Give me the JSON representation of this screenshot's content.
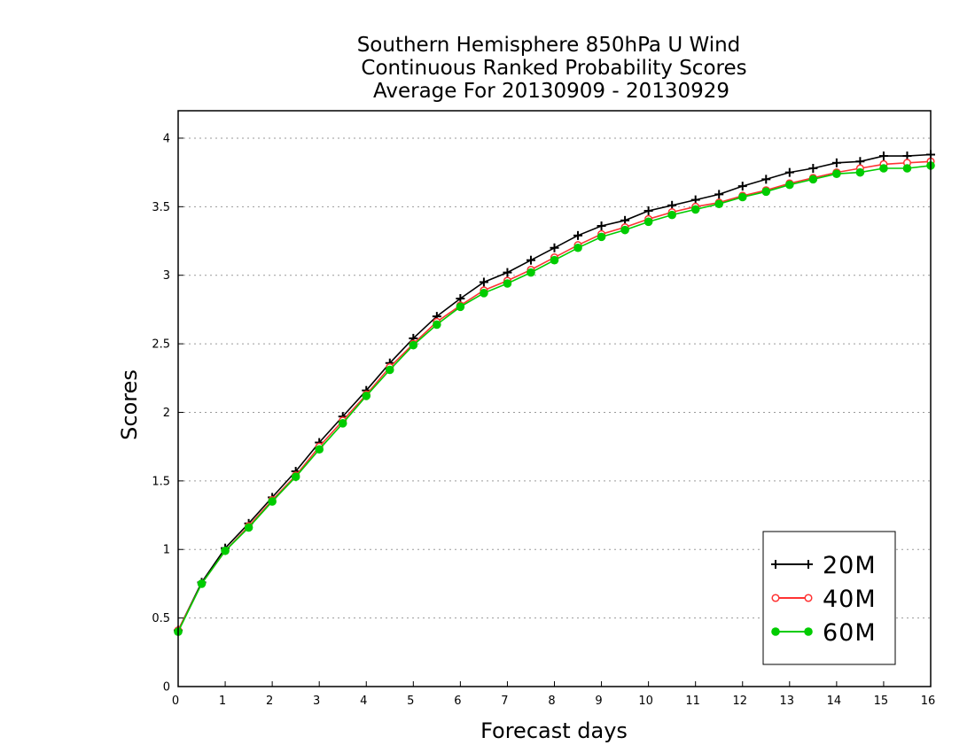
{
  "chart_data": {
    "type": "line",
    "title_lines": [
      "Southern Hemisphere 850hPa U Wind",
      "Continuous Ranked Probability Scores",
      "Average For 20130909 - 20130929"
    ],
    "xlabel": "Forecast days",
    "ylabel": "Scores",
    "xlim": [
      0,
      16
    ],
    "ylim": [
      0,
      4.2
    ],
    "x_ticks": [
      "0",
      "1",
      "2",
      "3",
      "4",
      "5",
      "6",
      "7",
      "8",
      "9",
      "10",
      "11",
      "12",
      "13",
      "14",
      "15",
      "16"
    ],
    "y_ticks": [
      "0",
      "0.5",
      "1",
      "1.5",
      "2",
      "2.5",
      "3",
      "3.5",
      "4"
    ],
    "grid": "horizontal-dotted",
    "legend_position": "bottom-right",
    "x": [
      0,
      0.5,
      1,
      1.5,
      2,
      2.5,
      3,
      3.5,
      4,
      4.5,
      5,
      5.5,
      6,
      6.5,
      7,
      7.5,
      8,
      8.5,
      9,
      9.5,
      10,
      10.5,
      11,
      11.5,
      12,
      12.5,
      13,
      13.5,
      14,
      14.5,
      15,
      15.5,
      16
    ],
    "series": [
      {
        "name": "20M",
        "color": "#000000",
        "marker": "plus",
        "values": [
          0.41,
          0.76,
          1.01,
          1.19,
          1.38,
          1.57,
          1.78,
          1.97,
          2.16,
          2.36,
          2.54,
          2.7,
          2.83,
          2.95,
          3.02,
          3.11,
          3.2,
          3.29,
          3.36,
          3.4,
          3.47,
          3.51,
          3.55,
          3.59,
          3.65,
          3.7,
          3.75,
          3.78,
          3.82,
          3.83,
          3.87,
          3.87,
          3.88
        ]
      },
      {
        "name": "40M",
        "color": "#ff3333",
        "marker": "open-circle",
        "values": [
          0.41,
          0.75,
          0.99,
          1.17,
          1.36,
          1.54,
          1.75,
          1.94,
          2.13,
          2.33,
          2.5,
          2.66,
          2.78,
          2.89,
          2.96,
          3.04,
          3.13,
          3.22,
          3.3,
          3.35,
          3.41,
          3.46,
          3.5,
          3.53,
          3.58,
          3.62,
          3.67,
          3.71,
          3.75,
          3.78,
          3.81,
          3.82,
          3.83
        ]
      },
      {
        "name": "60M",
        "color": "#00cc00",
        "marker": "filled-circle",
        "values": [
          0.4,
          0.75,
          0.99,
          1.16,
          1.35,
          1.53,
          1.73,
          1.92,
          2.12,
          2.31,
          2.49,
          2.64,
          2.77,
          2.87,
          2.94,
          3.02,
          3.11,
          3.2,
          3.28,
          3.33,
          3.39,
          3.44,
          3.48,
          3.52,
          3.57,
          3.61,
          3.66,
          3.7,
          3.74,
          3.75,
          3.78,
          3.78,
          3.8
        ]
      }
    ]
  }
}
